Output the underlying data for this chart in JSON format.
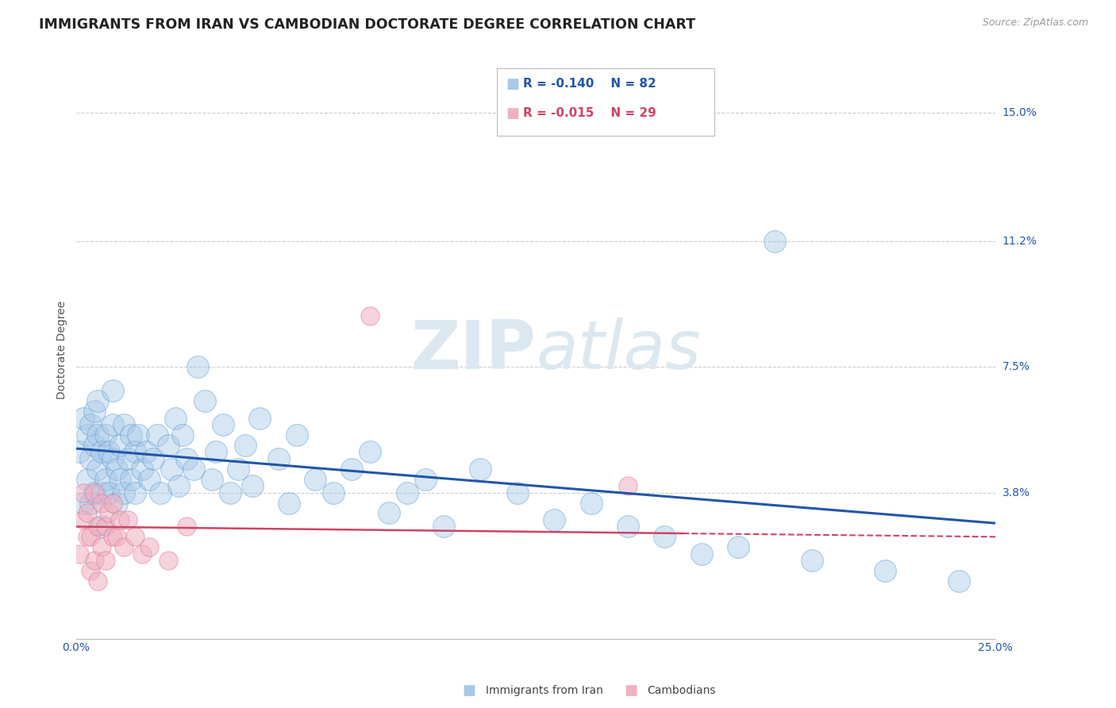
{
  "title": "IMMIGRANTS FROM IRAN VS CAMBODIAN DOCTORATE DEGREE CORRELATION CHART",
  "source_text": "Source: ZipAtlas.com",
  "xlabel": "",
  "ylabel": "Doctorate Degree",
  "legend_label_blue": "Immigrants from Iran",
  "legend_label_pink": "Cambodians",
  "legend_r_blue": "R = -0.140",
  "legend_r_pink": "R = -0.015",
  "legend_n_blue": "N = 82",
  "legend_n_pink": "N = 29",
  "xlim": [
    0.0,
    0.25
  ],
  "ylim": [
    -0.005,
    0.165
  ],
  "xticks": [
    0.0,
    0.05,
    0.1,
    0.15,
    0.2,
    0.25
  ],
  "xtick_labels": [
    "0.0%",
    "",
    "",
    "",
    "",
    "25.0%"
  ],
  "ytick_positions": [
    0.038,
    0.075,
    0.112,
    0.15
  ],
  "ytick_labels": [
    "3.8%",
    "7.5%",
    "11.2%",
    "15.0%"
  ],
  "color_blue": "#a8c8e8",
  "color_blue_line": "#2255aa",
  "color_blue_edge": "#5599cc",
  "color_pink": "#f0b0c0",
  "color_pink_line": "#cc4466",
  "color_pink_edge": "#dd7799",
  "color_title": "#222222",
  "background_color": "#ffffff",
  "watermark_color": "#dce8f0",
  "grid_color": "#cccccc",
  "blue_scatter_x": [
    0.001,
    0.002,
    0.002,
    0.003,
    0.003,
    0.004,
    0.004,
    0.004,
    0.005,
    0.005,
    0.005,
    0.006,
    0.006,
    0.006,
    0.007,
    0.007,
    0.007,
    0.008,
    0.008,
    0.009,
    0.009,
    0.01,
    0.01,
    0.01,
    0.011,
    0.011,
    0.012,
    0.012,
    0.013,
    0.013,
    0.014,
    0.015,
    0.015,
    0.016,
    0.016,
    0.017,
    0.018,
    0.019,
    0.02,
    0.021,
    0.022,
    0.023,
    0.025,
    0.026,
    0.027,
    0.028,
    0.029,
    0.03,
    0.032,
    0.033,
    0.035,
    0.037,
    0.038,
    0.04,
    0.042,
    0.044,
    0.046,
    0.048,
    0.05,
    0.055,
    0.058,
    0.06,
    0.065,
    0.07,
    0.075,
    0.08,
    0.085,
    0.09,
    0.095,
    0.1,
    0.11,
    0.12,
    0.13,
    0.14,
    0.15,
    0.16,
    0.17,
    0.18,
    0.2,
    0.22,
    0.24,
    0.19
  ],
  "blue_scatter_y": [
    0.05,
    0.06,
    0.035,
    0.042,
    0.055,
    0.048,
    0.058,
    0.035,
    0.052,
    0.062,
    0.038,
    0.045,
    0.055,
    0.065,
    0.05,
    0.038,
    0.028,
    0.055,
    0.042,
    0.05,
    0.038,
    0.048,
    0.058,
    0.068,
    0.045,
    0.035,
    0.052,
    0.042,
    0.058,
    0.038,
    0.048,
    0.055,
    0.042,
    0.05,
    0.038,
    0.055,
    0.045,
    0.05,
    0.042,
    0.048,
    0.055,
    0.038,
    0.052,
    0.045,
    0.06,
    0.04,
    0.055,
    0.048,
    0.045,
    0.075,
    0.065,
    0.042,
    0.05,
    0.058,
    0.038,
    0.045,
    0.052,
    0.04,
    0.06,
    0.048,
    0.035,
    0.055,
    0.042,
    0.038,
    0.045,
    0.05,
    0.032,
    0.038,
    0.042,
    0.028,
    0.045,
    0.038,
    0.03,
    0.035,
    0.028,
    0.025,
    0.02,
    0.022,
    0.018,
    0.015,
    0.012,
    0.112
  ],
  "pink_scatter_x": [
    0.001,
    0.002,
    0.002,
    0.003,
    0.003,
    0.004,
    0.004,
    0.005,
    0.005,
    0.006,
    0.006,
    0.007,
    0.007,
    0.008,
    0.008,
    0.009,
    0.01,
    0.01,
    0.011,
    0.012,
    0.013,
    0.014,
    0.016,
    0.018,
    0.02,
    0.025,
    0.03,
    0.15,
    0.08
  ],
  "pink_scatter_y": [
    0.02,
    0.03,
    0.038,
    0.025,
    0.032,
    0.015,
    0.025,
    0.018,
    0.038,
    0.028,
    0.012,
    0.022,
    0.035,
    0.028,
    0.018,
    0.032,
    0.025,
    0.035,
    0.025,
    0.03,
    0.022,
    0.03,
    0.025,
    0.02,
    0.022,
    0.018,
    0.028,
    0.04,
    0.09
  ],
  "blue_trend_x": [
    0.0,
    0.25
  ],
  "blue_trend_y_start": 0.051,
  "blue_trend_y_end": 0.029,
  "pink_trend_x": [
    0.0,
    0.165
  ],
  "pink_trend_solid_end_x": 0.165,
  "pink_trend_dash_start_x": 0.165,
  "pink_trend_dash_end_x": 0.25,
  "pink_trend_y_start": 0.028,
  "pink_trend_y_mid": 0.026,
  "pink_trend_y_end": 0.025,
  "title_fontsize": 12.5,
  "axis_label_fontsize": 10,
  "tick_fontsize": 10,
  "legend_fontsize": 11,
  "source_fontsize": 9,
  "scatter_size_blue": 400,
  "scatter_size_pink": 280,
  "scatter_alpha_blue": 0.45,
  "scatter_alpha_pink": 0.55
}
